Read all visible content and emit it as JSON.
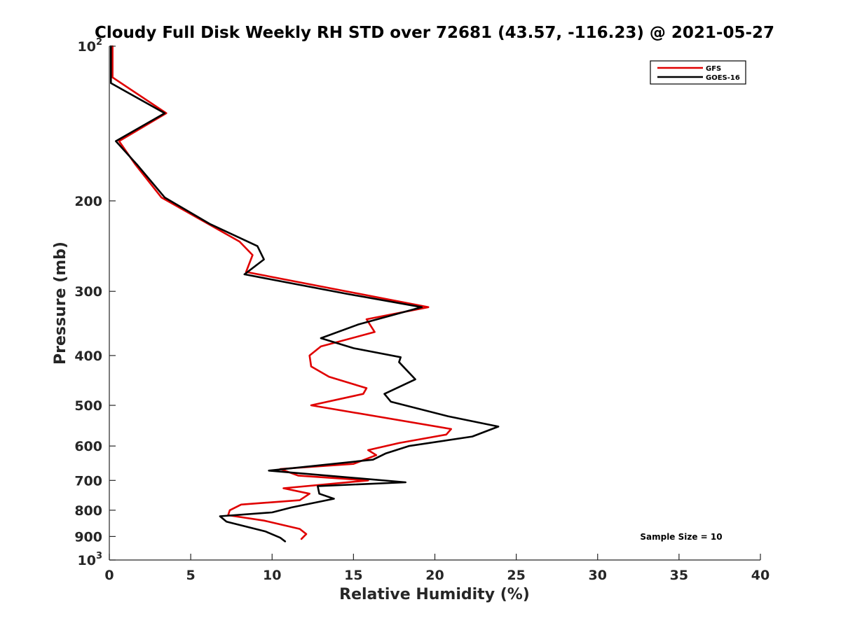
{
  "chart_data": {
    "type": "line",
    "title": "Cloudy Full Disk Weekly RH STD over 72681 (43.57, -116.23) @ 2021-05-27",
    "xlabel": "Relative Humidity (%)",
    "ylabel": "Pressure (mb)",
    "xlim": [
      0,
      40
    ],
    "ylim": [
      100,
      1000
    ],
    "yscale": "log",
    "y_reversed": true,
    "grid": false,
    "legend_position": "top-right",
    "x_ticks": [
      "0",
      "5",
      "10",
      "15",
      "20",
      "25",
      "30",
      "35",
      "40"
    ],
    "y_ticks": [
      {
        "base": "10",
        "exp": "2"
      },
      {
        "label": "200"
      },
      {
        "label": "300"
      },
      {
        "label": "400"
      },
      {
        "label": "500"
      },
      {
        "label": "600"
      },
      {
        "label": "700"
      },
      {
        "label": "800"
      },
      {
        "label": "900"
      },
      {
        "base": "10",
        "exp": "3"
      }
    ],
    "annotation": "Sample Size = 10",
    "series": [
      {
        "name": "GFS",
        "color": "#e00000",
        "points": [
          [
            0.2,
            100
          ],
          [
            0.2,
            115
          ],
          [
            3.5,
            135
          ],
          [
            0.6,
            153
          ],
          [
            1.6,
            170
          ],
          [
            3.2,
            197
          ],
          [
            8.0,
            240
          ],
          [
            8.8,
            255
          ],
          [
            8.4,
            275
          ],
          [
            19.6,
            322
          ],
          [
            15.8,
            340
          ],
          [
            16.3,
            360
          ],
          [
            13.0,
            384
          ],
          [
            12.3,
            400
          ],
          [
            12.4,
            420
          ],
          [
            13.5,
            440
          ],
          [
            15.8,
            463
          ],
          [
            15.6,
            475
          ],
          [
            12.4,
            500
          ],
          [
            21.0,
            556
          ],
          [
            20.7,
            570
          ],
          [
            17.8,
            592
          ],
          [
            15.9,
            611
          ],
          [
            16.4,
            625
          ],
          [
            15.0,
            650
          ],
          [
            10.5,
            665
          ],
          [
            11.6,
            685
          ],
          [
            15.9,
            700
          ],
          [
            10.7,
            725
          ],
          [
            12.3,
            743
          ],
          [
            11.7,
            765
          ],
          [
            8.1,
            780
          ],
          [
            7.4,
            800
          ],
          [
            7.3,
            818
          ],
          [
            9.5,
            838
          ],
          [
            11.7,
            870
          ],
          [
            12.1,
            890
          ],
          [
            11.8,
            910
          ]
        ]
      },
      {
        "name": "GOES-16",
        "color": "#000000",
        "points": [
          [
            0.1,
            100
          ],
          [
            0.1,
            118
          ],
          [
            3.4,
            135
          ],
          [
            0.4,
            153
          ],
          [
            1.7,
            170
          ],
          [
            3.4,
            197
          ],
          [
            6.2,
            222
          ],
          [
            9.1,
            245
          ],
          [
            9.5,
            260
          ],
          [
            8.3,
            278
          ],
          [
            14.5,
            303
          ],
          [
            19.2,
            322
          ],
          [
            15.3,
            348
          ],
          [
            13.0,
            370
          ],
          [
            15.0,
            387
          ],
          [
            17.9,
            403
          ],
          [
            17.8,
            412
          ],
          [
            18.2,
            425
          ],
          [
            18.8,
            445
          ],
          [
            16.9,
            475
          ],
          [
            17.3,
            492
          ],
          [
            20.8,
            525
          ],
          [
            23.9,
            550
          ],
          [
            22.3,
            575
          ],
          [
            18.4,
            600
          ],
          [
            17.0,
            620
          ],
          [
            16.2,
            638
          ],
          [
            9.8,
            670
          ],
          [
            18.2,
            706
          ],
          [
            12.8,
            718
          ],
          [
            12.9,
            743
          ],
          [
            13.8,
            760
          ],
          [
            11.2,
            790
          ],
          [
            10.0,
            808
          ],
          [
            6.8,
            822
          ],
          [
            7.2,
            842
          ],
          [
            9.6,
            880
          ],
          [
            10.5,
            905
          ],
          [
            10.8,
            920
          ]
        ]
      }
    ]
  }
}
